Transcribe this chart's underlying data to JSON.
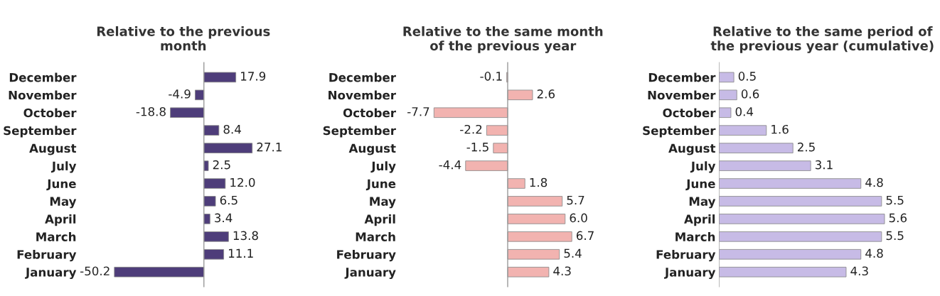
{
  "chart_data": [
    {
      "type": "bar",
      "orientation": "horizontal",
      "title": "Relative to the previous\nmonth",
      "categories": [
        "December",
        "November",
        "October",
        "September",
        "August",
        "July",
        "June",
        "May",
        "April",
        "March",
        "February",
        "January"
      ],
      "values": [
        17.9,
        -4.9,
        -18.8,
        8.4,
        27.1,
        2.5,
        12.0,
        6.5,
        3.4,
        13.8,
        11.1,
        -50.2
      ],
      "value_labels": [
        "17.9",
        "-4.9",
        "-18.8",
        "8.4",
        "27.1",
        "2.5",
        "12.0",
        "6.5",
        "3.4",
        "13.8",
        "11.1",
        "-50.2"
      ],
      "color": "#4e3d7a",
      "grid": false,
      "legend": false
    },
    {
      "type": "bar",
      "orientation": "horizontal",
      "title": "Relative to the same month\nof the previous year",
      "categories": [
        "December",
        "November",
        "October",
        "September",
        "August",
        "July",
        "June",
        "May",
        "April",
        "March",
        "February",
        "January"
      ],
      "values": [
        -0.1,
        2.6,
        -7.7,
        -2.2,
        -1.5,
        -4.4,
        1.8,
        5.7,
        6.0,
        6.7,
        5.4,
        4.3
      ],
      "value_labels": [
        "-0.1",
        "2.6",
        "-7.7",
        "-2.2",
        "-1.5",
        "-4.4",
        "1.8",
        "5.7",
        "6.0",
        "6.7",
        "5.4",
        "4.3"
      ],
      "color": "#f2b3b0",
      "grid": false,
      "legend": false
    },
    {
      "type": "bar",
      "orientation": "horizontal",
      "title": "Relative to the same period of\nthe previous year (cumulative)",
      "categories": [
        "December",
        "November",
        "October",
        "September",
        "August",
        "July",
        "June",
        "May",
        "April",
        "March",
        "February",
        "January"
      ],
      "values": [
        0.5,
        0.6,
        0.4,
        1.6,
        2.5,
        3.1,
        4.8,
        5.5,
        5.6,
        5.5,
        4.8,
        4.3
      ],
      "color": "#c7bbe6",
      "data_labels": true,
      "grid": false,
      "legend": false
    }
  ]
}
